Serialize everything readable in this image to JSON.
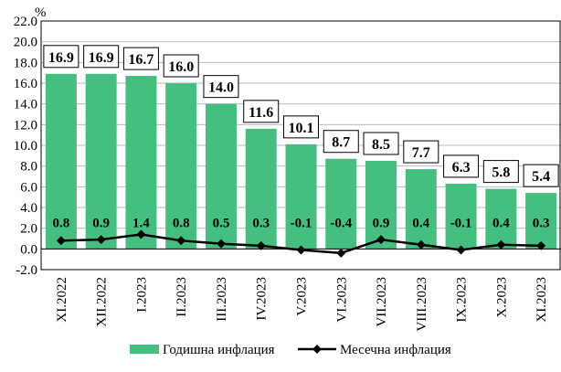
{
  "chart_data": {
    "type": "bar+line",
    "unit_label": "%",
    "categories": [
      "XI.2022",
      "XII.2022",
      "I.2023",
      "II.2023",
      "III.2023",
      "IV.2023",
      "V.2023",
      "VI.2023",
      "VII.2023",
      "VIII.2023",
      "IX.2023",
      "X.2023",
      "XI.2023"
    ],
    "series": [
      {
        "name": "Годишна инфлация",
        "type": "bar",
        "color": "#44BF80",
        "values": [
          16.9,
          16.9,
          16.7,
          16.0,
          14.0,
          11.6,
          10.1,
          8.7,
          8.5,
          7.7,
          6.3,
          5.8,
          5.4
        ]
      },
      {
        "name": "Месечна инфлация",
        "type": "line",
        "color": "#000000",
        "marker": "diamond",
        "values": [
          0.8,
          0.9,
          1.4,
          0.8,
          0.5,
          0.3,
          -0.1,
          -0.4,
          0.9,
          0.4,
          -0.1,
          0.4,
          0.3
        ]
      }
    ],
    "ylim": [
      -2,
      22
    ],
    "yticks": [
      -2,
      0,
      2,
      4,
      6,
      8,
      10,
      12,
      14,
      16,
      18,
      20,
      22
    ],
    "grid": true,
    "legend": "bottom"
  }
}
